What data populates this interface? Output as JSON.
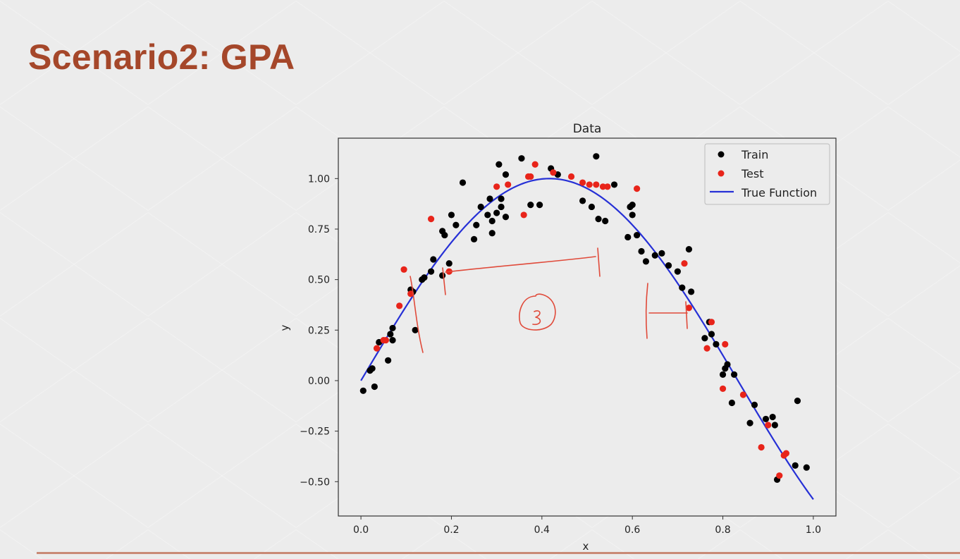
{
  "slide": {
    "title": "Scenario2: GPA"
  },
  "colors": {
    "title": "#a5472a",
    "train": "#000000",
    "test": "#e8241a",
    "true_function": "#2630d6",
    "annotation": "#e04a3a"
  },
  "chart_data": {
    "type": "scatter",
    "title": "Data",
    "xlabel": "x",
    "ylabel": "y",
    "xlim": [
      -0.05,
      1.05
    ],
    "ylim": [
      -0.67,
      1.2
    ],
    "xticks": [
      "0.0",
      "0.2",
      "0.4",
      "0.6",
      "0.8",
      "1.0"
    ],
    "xtick_values": [
      0.0,
      0.2,
      0.4,
      0.6,
      0.8,
      1.0
    ],
    "yticks": [
      "-0.50",
      "-0.25",
      "0.00",
      "0.25",
      "0.50",
      "0.75",
      "1.00"
    ],
    "ytick_values": [
      -0.5,
      -0.25,
      0.0,
      0.25,
      0.5,
      0.75,
      1.0
    ],
    "grid": false,
    "legend_position": "top-right",
    "series": [
      {
        "name": "Train",
        "kind": "points",
        "points": [
          [
            0.005,
            -0.05
          ],
          [
            0.02,
            0.05
          ],
          [
            0.025,
            0.06
          ],
          [
            0.03,
            -0.03
          ],
          [
            0.04,
            0.19
          ],
          [
            0.06,
            0.1
          ],
          [
            0.065,
            0.23
          ],
          [
            0.07,
            0.2
          ],
          [
            0.07,
            0.26
          ],
          [
            0.11,
            0.45
          ],
          [
            0.115,
            0.44
          ],
          [
            0.12,
            0.25
          ],
          [
            0.135,
            0.5
          ],
          [
            0.14,
            0.51
          ],
          [
            0.155,
            0.54
          ],
          [
            0.16,
            0.6
          ],
          [
            0.18,
            0.52
          ],
          [
            0.18,
            0.74
          ],
          [
            0.185,
            0.72
          ],
          [
            0.195,
            0.58
          ],
          [
            0.2,
            0.82
          ],
          [
            0.21,
            0.77
          ],
          [
            0.225,
            0.98
          ],
          [
            0.25,
            0.7
          ],
          [
            0.255,
            0.77
          ],
          [
            0.265,
            0.86
          ],
          [
            0.28,
            0.82
          ],
          [
            0.285,
            0.9
          ],
          [
            0.29,
            0.73
          ],
          [
            0.29,
            0.79
          ],
          [
            0.3,
            0.83
          ],
          [
            0.305,
            1.07
          ],
          [
            0.31,
            0.86
          ],
          [
            0.31,
            0.9
          ],
          [
            0.32,
            0.81
          ],
          [
            0.32,
            1.02
          ],
          [
            0.355,
            1.1
          ],
          [
            0.375,
            0.87
          ],
          [
            0.395,
            0.87
          ],
          [
            0.42,
            1.05
          ],
          [
            0.435,
            1.02
          ],
          [
            0.49,
            0.89
          ],
          [
            0.51,
            0.86
          ],
          [
            0.52,
            1.11
          ],
          [
            0.525,
            0.8
          ],
          [
            0.54,
            0.79
          ],
          [
            0.56,
            0.97
          ],
          [
            0.59,
            0.71
          ],
          [
            0.595,
            0.86
          ],
          [
            0.6,
            0.82
          ],
          [
            0.6,
            0.87
          ],
          [
            0.61,
            0.72
          ],
          [
            0.62,
            0.64
          ],
          [
            0.63,
            0.59
          ],
          [
            0.65,
            0.62
          ],
          [
            0.665,
            0.63
          ],
          [
            0.68,
            0.57
          ],
          [
            0.7,
            0.54
          ],
          [
            0.71,
            0.46
          ],
          [
            0.725,
            0.65
          ],
          [
            0.73,
            0.44
          ],
          [
            0.76,
            0.21
          ],
          [
            0.77,
            0.29
          ],
          [
            0.775,
            0.23
          ],
          [
            0.785,
            0.18
          ],
          [
            0.8,
            0.03
          ],
          [
            0.805,
            0.06
          ],
          [
            0.81,
            0.08
          ],
          [
            0.82,
            -0.11
          ],
          [
            0.825,
            0.03
          ],
          [
            0.86,
            -0.21
          ],
          [
            0.87,
            -0.12
          ],
          [
            0.895,
            -0.19
          ],
          [
            0.91,
            -0.18
          ],
          [
            0.915,
            -0.22
          ],
          [
            0.92,
            -0.49
          ],
          [
            0.96,
            -0.42
          ],
          [
            0.965,
            -0.1
          ],
          [
            0.985,
            -0.43
          ]
        ]
      },
      {
        "name": "Test",
        "kind": "points",
        "points": [
          [
            0.035,
            0.16
          ],
          [
            0.05,
            0.2
          ],
          [
            0.055,
            0.2
          ],
          [
            0.085,
            0.37
          ],
          [
            0.095,
            0.55
          ],
          [
            0.11,
            0.43
          ],
          [
            0.155,
            0.8
          ],
          [
            0.195,
            0.54
          ],
          [
            0.3,
            0.96
          ],
          [
            0.325,
            0.97
          ],
          [
            0.36,
            0.82
          ],
          [
            0.37,
            1.01
          ],
          [
            0.375,
            1.01
          ],
          [
            0.385,
            1.07
          ],
          [
            0.425,
            1.03
          ],
          [
            0.465,
            1.01
          ],
          [
            0.49,
            0.98
          ],
          [
            0.505,
            0.97
          ],
          [
            0.52,
            0.97
          ],
          [
            0.535,
            0.96
          ],
          [
            0.545,
            0.96
          ],
          [
            0.61,
            0.95
          ],
          [
            0.715,
            0.58
          ],
          [
            0.725,
            0.36
          ],
          [
            0.765,
            0.16
          ],
          [
            0.775,
            0.29
          ],
          [
            0.8,
            -0.04
          ],
          [
            0.805,
            0.18
          ],
          [
            0.845,
            -0.07
          ],
          [
            0.885,
            -0.33
          ],
          [
            0.9,
            -0.22
          ],
          [
            0.925,
            -0.47
          ],
          [
            0.935,
            -0.37
          ],
          [
            0.94,
            -0.36
          ]
        ]
      },
      {
        "name": "True Function",
        "kind": "line",
        "function": "sin(1.2*pi*x)",
        "x_range": [
          0.0,
          1.0
        ]
      }
    ]
  }
}
